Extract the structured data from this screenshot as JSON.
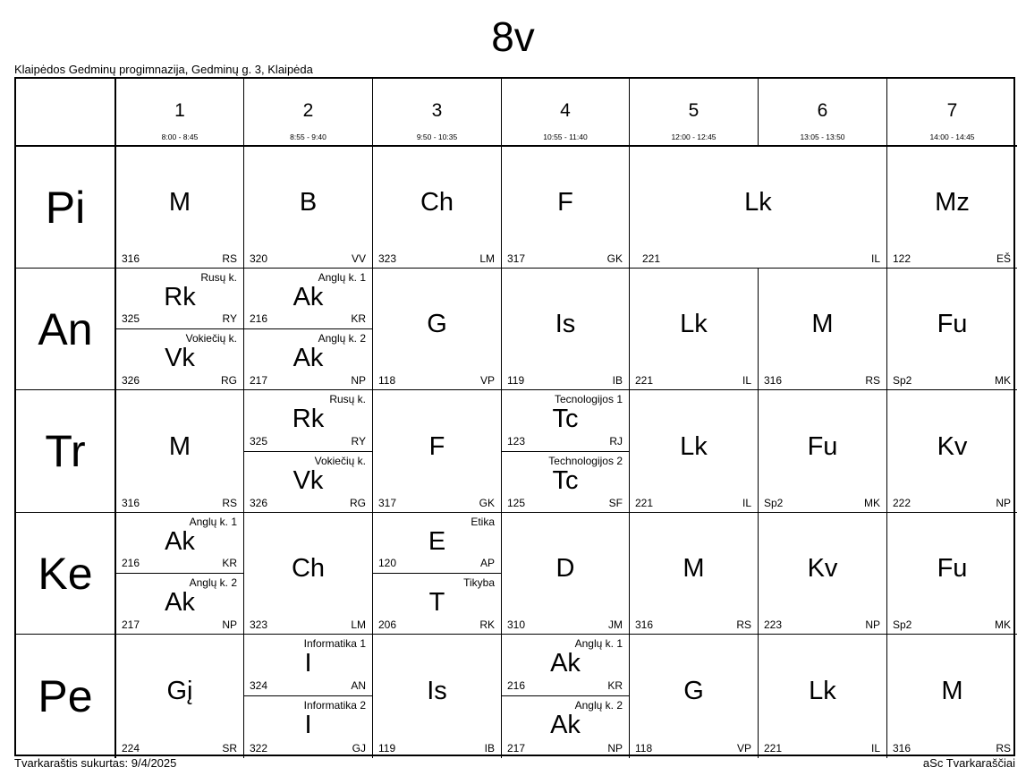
{
  "title": "8v",
  "school": "Klaipėdos Gedminų progimnazija, Gedminų g. 3, Klaipėda",
  "footer_left": "Tvarkaraštis sukurtas: 9/4/2025",
  "footer_right": "aSc Tvarkaraščiai",
  "periods": [
    {
      "num": "1",
      "time": "8:00 - 8:45"
    },
    {
      "num": "2",
      "time": "8:55 - 9:40"
    },
    {
      "num": "3",
      "time": "9:50 - 10:35"
    },
    {
      "num": "4",
      "time": "10:55 - 11:40"
    },
    {
      "num": "5",
      "time": "12:00 - 12:45"
    },
    {
      "num": "6",
      "time": "13:05 - 13:50"
    },
    {
      "num": "7",
      "time": "14:00 - 14:45"
    }
  ],
  "days": [
    {
      "name": "Pi",
      "cells": [
        {
          "span": 1,
          "lessons": [
            {
              "subject": "M",
              "room": "316",
              "teacher": "RS"
            }
          ]
        },
        {
          "span": 1,
          "lessons": [
            {
              "subject": "B",
              "room": "320",
              "teacher": "VV"
            }
          ]
        },
        {
          "span": 1,
          "lessons": [
            {
              "subject": "Ch",
              "room": "323",
              "teacher": "LM"
            }
          ]
        },
        {
          "span": 1,
          "lessons": [
            {
              "subject": "F",
              "room": "317",
              "teacher": "GK"
            }
          ]
        },
        {
          "span": 2,
          "lessons": [
            {
              "subject": "Lk",
              "room": "221",
              "teacher": "IL"
            }
          ]
        },
        {
          "span": 1,
          "lessons": [
            {
              "subject": "Mz",
              "room": "122",
              "teacher": "EŠ"
            }
          ]
        }
      ]
    },
    {
      "name": "An",
      "cells": [
        {
          "span": 1,
          "lessons": [
            {
              "subject": "Rk",
              "group": "Rusų k.",
              "room": "325",
              "teacher": "RY"
            },
            {
              "subject": "Vk",
              "group": "Vokiečių k.",
              "room": "326",
              "teacher": "RG"
            }
          ]
        },
        {
          "span": 1,
          "lessons": [
            {
              "subject": "Ak",
              "group": "Anglų k. 1",
              "room": "216",
              "teacher": "KR"
            },
            {
              "subject": "Ak",
              "group": "Anglų k. 2",
              "room": "217",
              "teacher": "NP"
            }
          ]
        },
        {
          "span": 1,
          "lessons": [
            {
              "subject": "G",
              "room": "118",
              "teacher": "VP"
            }
          ]
        },
        {
          "span": 1,
          "lessons": [
            {
              "subject": "Is",
              "room": "119",
              "teacher": "IB"
            }
          ]
        },
        {
          "span": 1,
          "lessons": [
            {
              "subject": "Lk",
              "room": "221",
              "teacher": "IL"
            }
          ]
        },
        {
          "span": 1,
          "lessons": [
            {
              "subject": "M",
              "room": "316",
              "teacher": "RS"
            }
          ]
        },
        {
          "span": 1,
          "lessons": [
            {
              "subject": "Fu",
              "room": "Sp2",
              "teacher": "MK"
            }
          ]
        }
      ]
    },
    {
      "name": "Tr",
      "cells": [
        {
          "span": 1,
          "lessons": [
            {
              "subject": "M",
              "room": "316",
              "teacher": "RS"
            }
          ]
        },
        {
          "span": 1,
          "lessons": [
            {
              "subject": "Rk",
              "group": "Rusų k.",
              "room": "325",
              "teacher": "RY"
            },
            {
              "subject": "Vk",
              "group": "Vokiečių k.",
              "room": "326",
              "teacher": "RG"
            }
          ]
        },
        {
          "span": 1,
          "lessons": [
            {
              "subject": "F",
              "room": "317",
              "teacher": "GK"
            }
          ]
        },
        {
          "span": 1,
          "lessons": [
            {
              "subject": "Tc",
              "group": "Tecnologijos 1",
              "room": "123",
              "teacher": "RJ"
            },
            {
              "subject": "Tc",
              "group": "Technologijos 2",
              "room": "125",
              "teacher": "SF"
            }
          ]
        },
        {
          "span": 1,
          "lessons": [
            {
              "subject": "Lk",
              "room": "221",
              "teacher": "IL"
            }
          ]
        },
        {
          "span": 1,
          "lessons": [
            {
              "subject": "Fu",
              "room": "Sp2",
              "teacher": "MK"
            }
          ]
        },
        {
          "span": 1,
          "lessons": [
            {
              "subject": "Kv",
              "room": "222",
              "teacher": "NP"
            }
          ]
        }
      ]
    },
    {
      "name": "Ke",
      "cells": [
        {
          "span": 1,
          "lessons": [
            {
              "subject": "Ak",
              "group": "Anglų k. 1",
              "room": "216",
              "teacher": "KR"
            },
            {
              "subject": "Ak",
              "group": "Anglų k. 2",
              "room": "217",
              "teacher": "NP"
            }
          ]
        },
        {
          "span": 1,
          "lessons": [
            {
              "subject": "Ch",
              "room": "323",
              "teacher": "LM"
            }
          ]
        },
        {
          "span": 1,
          "lessons": [
            {
              "subject": "E",
              "group": "Etika",
              "room": "120",
              "teacher": "AP"
            },
            {
              "subject": "T",
              "group": "Tikyba",
              "room": "206",
              "teacher": "RK"
            }
          ]
        },
        {
          "span": 1,
          "lessons": [
            {
              "subject": "D",
              "room": "310",
              "teacher": "JM"
            }
          ]
        },
        {
          "span": 1,
          "lessons": [
            {
              "subject": "M",
              "room": "316",
              "teacher": "RS"
            }
          ]
        },
        {
          "span": 1,
          "lessons": [
            {
              "subject": "Kv",
              "room": "223",
              "teacher": "NP"
            }
          ]
        },
        {
          "span": 1,
          "lessons": [
            {
              "subject": "Fu",
              "room": "Sp2",
              "teacher": "MK"
            }
          ]
        }
      ]
    },
    {
      "name": "Pe",
      "cells": [
        {
          "span": 1,
          "lessons": [
            {
              "subject": "Gį",
              "room": "224",
              "teacher": "SR"
            }
          ]
        },
        {
          "span": 1,
          "lessons": [
            {
              "subject": "I",
              "group": "Informatika 1",
              "room": "324",
              "teacher": "AN"
            },
            {
              "subject": "I",
              "group": "Informatika 2",
              "room": "322",
              "teacher": "GJ"
            }
          ]
        },
        {
          "span": 1,
          "lessons": [
            {
              "subject": "Is",
              "room": "119",
              "teacher": "IB"
            }
          ]
        },
        {
          "span": 1,
          "lessons": [
            {
              "subject": "Ak",
              "group": "Anglų k. 1",
              "room": "216",
              "teacher": "KR"
            },
            {
              "subject": "Ak",
              "group": "Anglų k. 2",
              "room": "217",
              "teacher": "NP"
            }
          ]
        },
        {
          "span": 1,
          "lessons": [
            {
              "subject": "G",
              "room": "118",
              "teacher": "VP"
            }
          ]
        },
        {
          "span": 1,
          "lessons": [
            {
              "subject": "Lk",
              "room": "221",
              "teacher": "IL"
            }
          ]
        },
        {
          "span": 1,
          "lessons": [
            {
              "subject": "M",
              "room": "316",
              "teacher": "RS"
            }
          ]
        }
      ]
    }
  ]
}
